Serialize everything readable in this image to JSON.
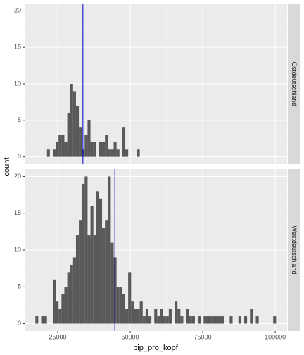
{
  "xlabel": "bip_pro_kopf",
  "ylabel": "count",
  "chart_data": [
    {
      "type": "histogram",
      "facet": "Ostdeutschland",
      "color": "#595959",
      "bins": [
        17300,
        18300,
        19300,
        20300,
        21300,
        22300,
        23300,
        24300,
        25300,
        26300,
        27300,
        28300,
        29300,
        30300,
        31300,
        32300,
        33300,
        34300,
        35300,
        36300,
        37300,
        38300,
        39300,
        40300,
        41300,
        42300,
        43300,
        44300,
        45300,
        46300,
        47300,
        48300,
        49300,
        50300,
        51300,
        52300,
        53300,
        54300,
        55300,
        56300,
        57300,
        58300,
        59300,
        60300,
        61300,
        62300,
        63300,
        64300,
        65300,
        66300,
        67300,
        68300,
        69300,
        70300,
        71300,
        72300,
        73300,
        74300,
        75300,
        76300,
        77300,
        78300,
        79300,
        80300,
        81300,
        82300,
        83300,
        84300,
        85300,
        86300,
        87300,
        88300,
        89300,
        90300,
        91300,
        92300,
        93300,
        94300,
        95300,
        96300,
        97300,
        98300,
        99300,
        100300,
        101300
      ],
      "values": [
        0,
        0,
        0,
        0,
        1,
        0,
        1,
        2,
        3,
        3,
        2,
        6,
        10,
        9,
        7,
        4,
        1,
        3,
        5,
        2,
        2,
        0,
        2,
        2,
        3,
        1,
        1,
        2,
        1,
        0,
        4,
        1,
        0,
        0,
        0,
        1,
        0,
        0,
        0,
        0,
        0,
        0,
        0,
        0,
        0,
        0,
        0,
        0,
        0,
        0,
        0,
        0,
        0,
        0,
        0,
        0,
        0,
        0,
        0,
        0,
        0,
        0,
        0,
        0,
        0,
        0,
        0,
        0,
        0,
        0,
        0,
        0,
        0,
        0,
        0,
        0,
        0,
        0,
        0,
        0,
        0,
        0,
        0,
        0
      ],
      "mean_line": {
        "value": 33700,
        "color": "#0000cc"
      },
      "xlim": [
        13600,
        104100
      ],
      "xticks": [
        25000,
        50000,
        75000,
        100000
      ],
      "ylim": [
        -1,
        21
      ],
      "yticks": [
        0,
        5,
        10,
        15,
        20
      ],
      "grid": true
    },
    {
      "type": "histogram",
      "facet": "Westdeutschland",
      "color": "#595959",
      "bins": [
        17300,
        18300,
        19300,
        20300,
        21300,
        22300,
        23300,
        24300,
        25300,
        26300,
        27300,
        28300,
        29300,
        30300,
        31300,
        32300,
        33300,
        34300,
        35300,
        36300,
        37300,
        38300,
        39300,
        40300,
        41300,
        42300,
        43300,
        44300,
        45300,
        46300,
        47300,
        48300,
        49300,
        50300,
        51300,
        52300,
        53300,
        54300,
        55300,
        56300,
        57300,
        58300,
        59300,
        60300,
        61300,
        62300,
        63300,
        64300,
        65300,
        66300,
        67300,
        68300,
        69300,
        70300,
        71300,
        72300,
        73300,
        74300,
        75300,
        76300,
        77300,
        78300,
        79300,
        80300,
        81300,
        82300,
        83300,
        84300,
        85300,
        86300,
        87300,
        88300,
        89300,
        90300,
        91300,
        92300,
        93300,
        94300,
        95300,
        96300,
        97300,
        98300,
        99300,
        100300,
        101300
      ],
      "values": [
        1,
        0,
        1,
        1,
        0,
        0,
        6,
        3,
        2,
        4,
        5,
        7,
        8,
        9,
        12,
        14,
        19,
        20,
        12,
        16,
        12,
        18,
        17,
        13,
        14,
        20,
        11,
        9,
        5,
        5,
        4,
        2,
        7,
        3,
        2,
        2,
        3,
        1,
        2,
        1,
        0,
        2,
        1,
        2,
        1,
        1,
        2,
        0,
        3,
        2,
        1,
        0,
        2,
        1,
        1,
        0,
        1,
        0,
        1,
        1,
        1,
        1,
        1,
        1,
        1,
        0,
        0,
        1,
        0,
        0,
        1,
        0,
        1,
        0,
        2,
        0,
        1,
        0,
        0,
        0,
        0,
        0,
        1,
        0
      ],
      "mean_line": {
        "value": 44700,
        "color": "#0000cc"
      },
      "xlim": [
        13600,
        104100
      ],
      "xticks": [
        25000,
        50000,
        75000,
        100000
      ],
      "ylim": [
        -1,
        21
      ],
      "yticks": [
        0,
        5,
        10,
        15,
        20
      ],
      "grid": true
    }
  ]
}
